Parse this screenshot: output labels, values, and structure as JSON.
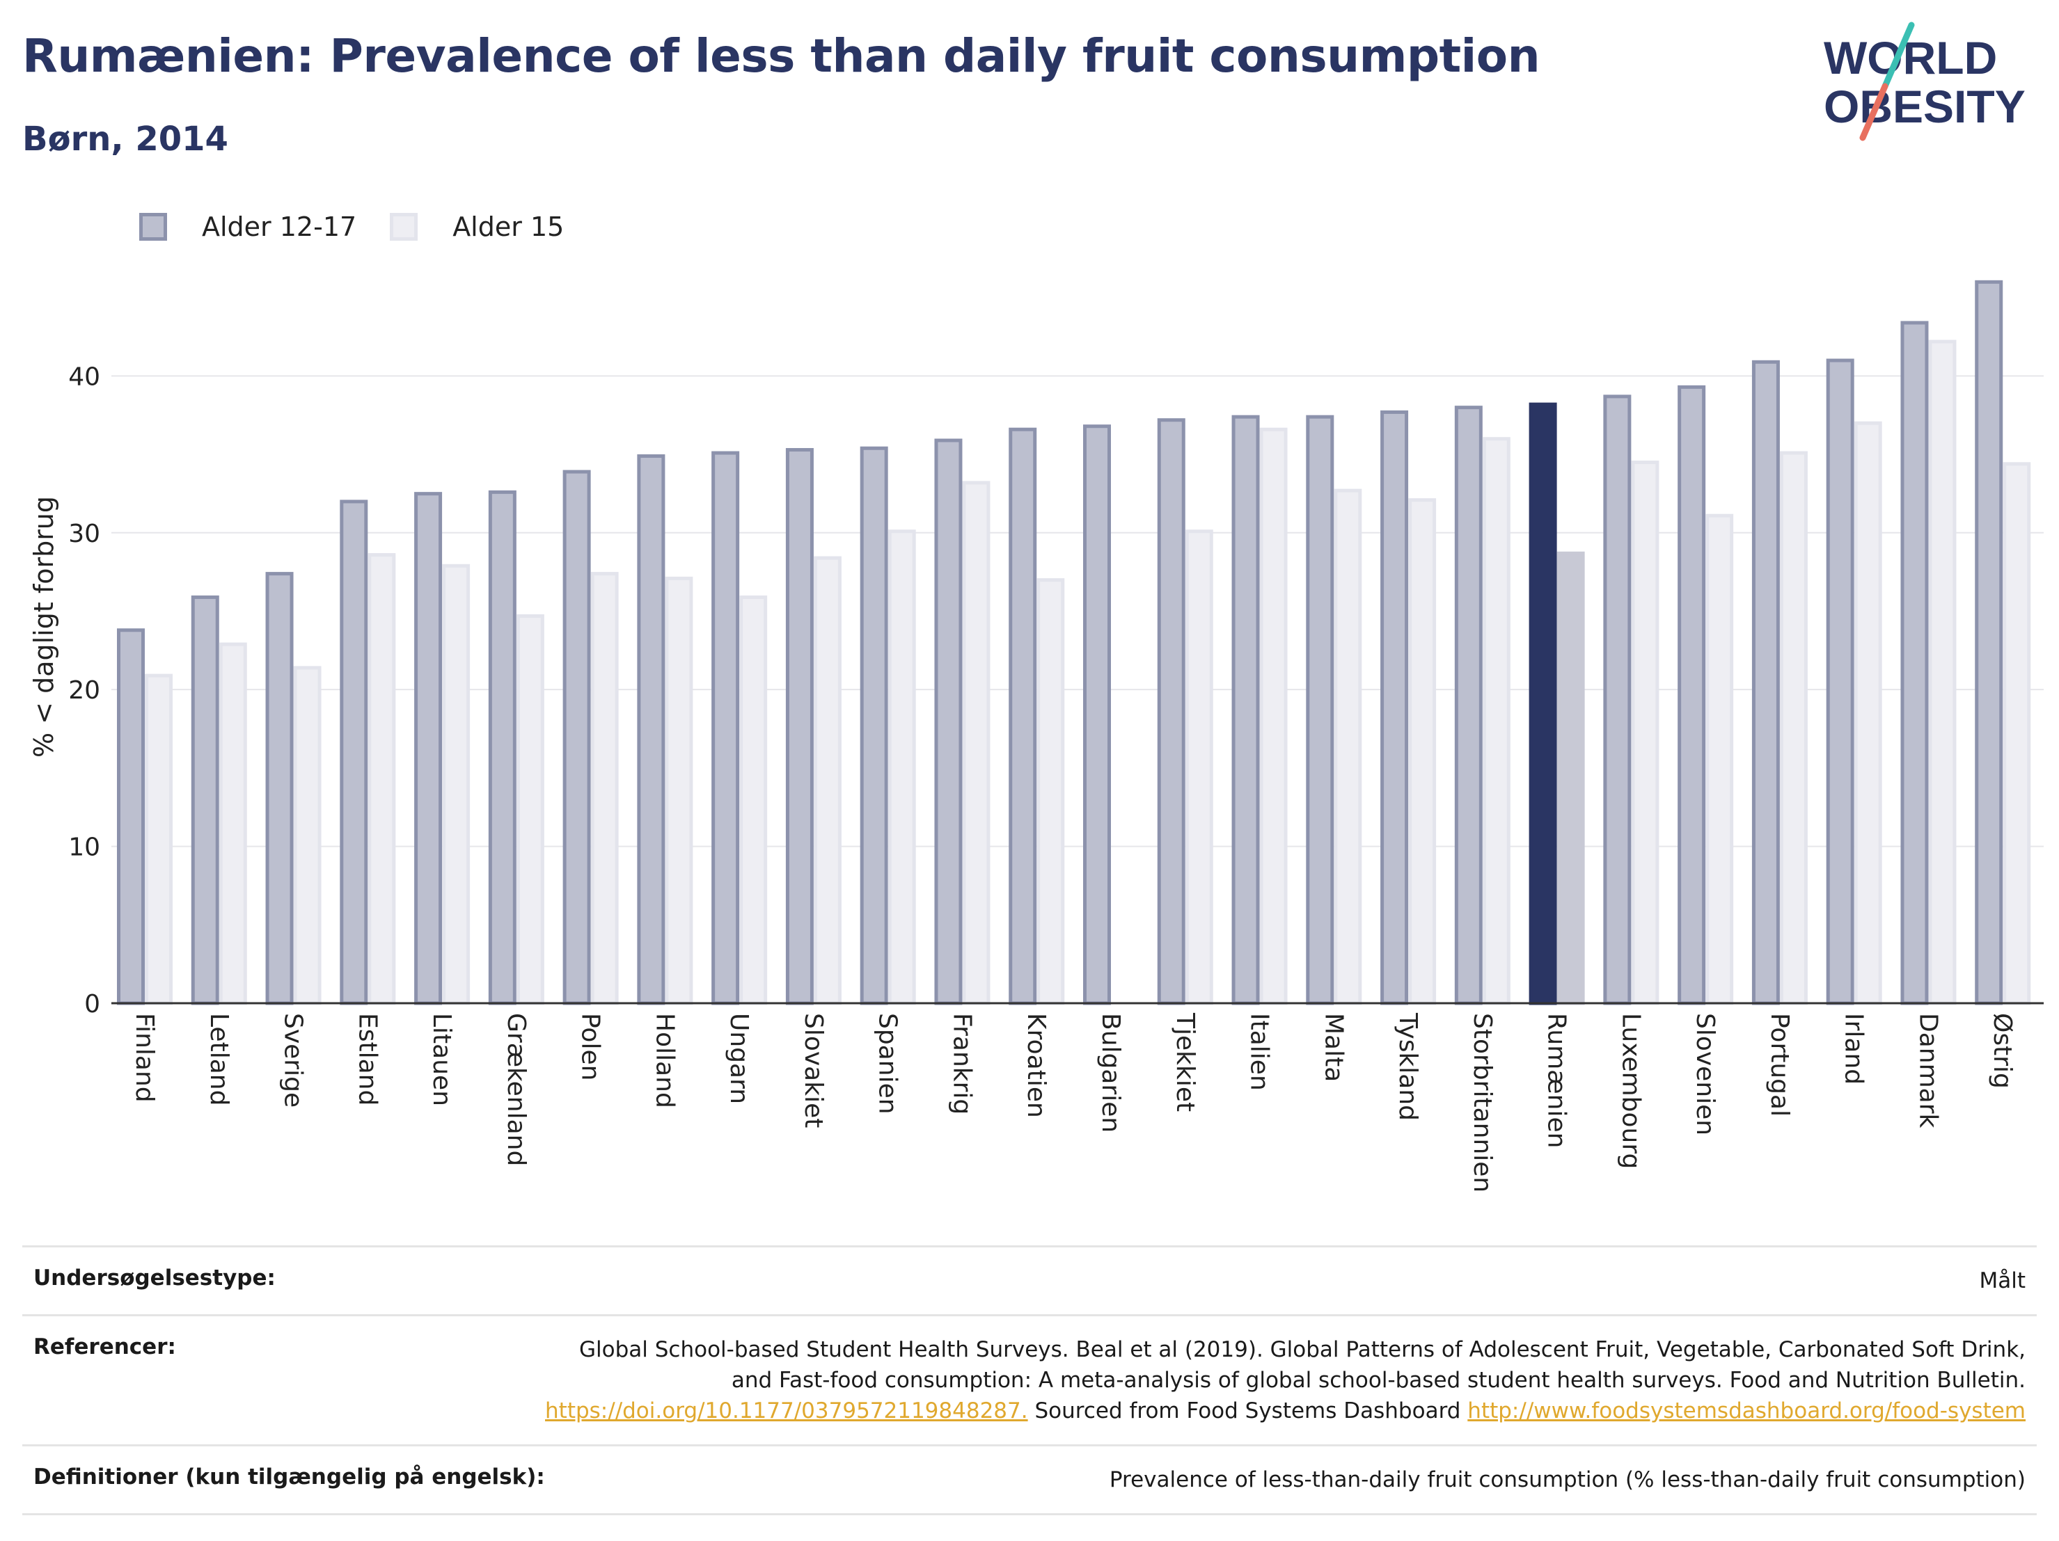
{
  "header": {
    "title": "Rumænien: Prevalence of less than daily fruit consumption",
    "subtitle": "Børn, 2014"
  },
  "logo": {
    "line1": "WORLD",
    "line2": "OBESITY"
  },
  "legend": {
    "items": [
      {
        "label": "Alder 12-17"
      },
      {
        "label": "Alder 15"
      }
    ]
  },
  "colors": {
    "series1_fill": "#bcbfcf",
    "series1_stroke": "#8c92ac",
    "series2_fill": "#eeeef3",
    "series2_stroke": "#e3e4ec",
    "highlight1": "#2a3563",
    "highlight2": "#c8c9d5",
    "title": "#2a3563",
    "link": "#e0a82e"
  },
  "chart_data": {
    "type": "bar",
    "ylabel": "% < dagligt forbrug",
    "ylim": [
      0,
      48
    ],
    "yticks": [
      0,
      10,
      20,
      30,
      40
    ],
    "grid": true,
    "legend_position": "top-left",
    "highlight": "Rumænien",
    "categories": [
      "Finland",
      "Letland",
      "Sverige",
      "Estland",
      "Litauen",
      "Grækenland",
      "Polen",
      "Holland",
      "Ungarn",
      "Slovakiet",
      "Spanien",
      "Frankrig",
      "Kroatien",
      "Bulgarien",
      "Tjekkiet",
      "Italien",
      "Malta",
      "Tyskland",
      "Storbritannien",
      "Rumænien",
      "Luxembourg",
      "Slovenien",
      "Portugal",
      "Irland",
      "Danmark",
      "Østrig"
    ],
    "series": [
      {
        "name": "Alder 12-17",
        "values": [
          23.9,
          26.0,
          27.5,
          32.1,
          32.6,
          32.7,
          34.0,
          35.0,
          35.2,
          35.4,
          35.5,
          36.0,
          36.7,
          36.9,
          37.3,
          37.5,
          37.5,
          37.8,
          38.1,
          38.3,
          38.8,
          39.4,
          41.0,
          41.1,
          43.5,
          46.1
        ]
      },
      {
        "name": "Alder 15",
        "values": [
          21.0,
          23.0,
          21.5,
          28.7,
          28.0,
          24.8,
          27.5,
          27.2,
          26.0,
          28.5,
          30.2,
          33.3,
          27.1,
          null,
          30.2,
          36.7,
          32.8,
          32.2,
          36.1,
          28.8,
          34.6,
          31.2,
          35.2,
          37.1,
          42.3,
          34.5
        ]
      }
    ]
  },
  "info": {
    "survey_type_label": "Undersøgelsestype:",
    "survey_type_value": "Målt",
    "references_label": "Referencer:",
    "references_line1": "Global School-based Student Health Surveys. Beal et al (2019). Global Patterns of Adolescent Fruit, Vegetable, Carbonated Soft Drink,",
    "references_line2": "and Fast-food consumption: A meta-analysis of global school-based student health surveys. Food and Nutrition Bulletin.",
    "references_doi": "https://doi.org/10.1177/0379572119848287.",
    "references_sourced": " Sourced from Food Systems Dashboard ",
    "references_link": "http://www.foodsystemsdashboard.org/food-system",
    "definitions_label": "Definitioner (kun tilgængelig på engelsk):",
    "definitions_value": "Prevalence of less-than-daily fruit consumption (% less-than-daily fruit consumption)"
  }
}
